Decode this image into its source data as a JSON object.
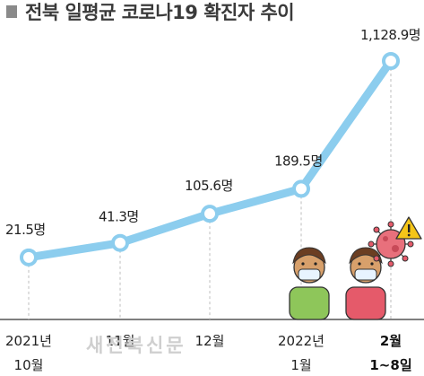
{
  "title": "전북 일평균 코로나19 확진자 추이",
  "watermark": "새전북신문",
  "chart_data": {
    "type": "line",
    "title": "전북 일평균 코로나19 확진자 추이",
    "categories": [
      [
        "2021년",
        "10월"
      ],
      [
        "11월"
      ],
      [
        "12월"
      ],
      [
        "2022년",
        "1월"
      ],
      [
        "2월",
        "1~8일"
      ]
    ],
    "highlight_category_index": 4,
    "series": [
      {
        "values": [
          21.5,
          41.3,
          105.6,
          189.5,
          1128.9
        ]
      }
    ],
    "data_labels": [
      "21.5명",
      "41.3명",
      "105.6명",
      "189.5명",
      "1,128.9명"
    ],
    "ylim": [
      0,
      1200
    ],
    "grid": false,
    "colors": {
      "line": "#8ccdee",
      "marker_fill": "#ffffff",
      "guide": "#bdbdbd",
      "title_marker": "#8a8a8a"
    }
  }
}
